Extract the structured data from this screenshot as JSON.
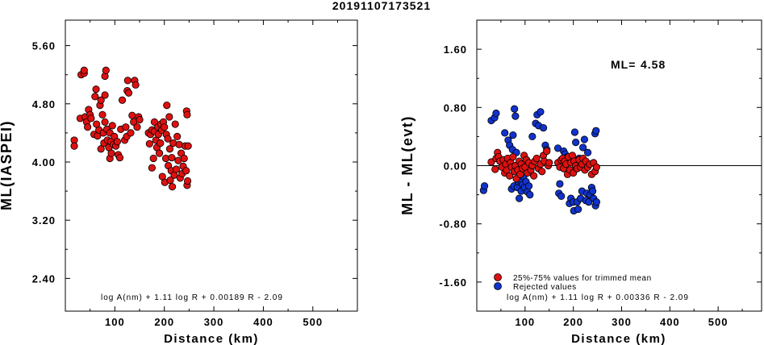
{
  "title": "20191107173521",
  "colors": {
    "red": "#dd1111",
    "blue": "#1133cc",
    "axis": "#000000"
  },
  "chart_data": [
    {
      "type": "scatter",
      "id": "left",
      "xlabel": "Distance (km)",
      "ylabel": "ML(IASPEI)",
      "xlim": [
        0,
        590
      ],
      "ylim": [
        1.95,
        5.95
      ],
      "xticks": [
        "100",
        "200",
        "300",
        "400",
        "500"
      ],
      "xtick_values": [
        100,
        200,
        300,
        400,
        500
      ],
      "yticks": [
        "5.60",
        "4.80",
        "4.00",
        "3.20",
        "2.40"
      ],
      "ytick_values": [
        5.6,
        4.8,
        4.0,
        3.2,
        2.4
      ],
      "annotation": "log A(nm) + 1.11 log R + 0.00189 R - 2.09",
      "series": [
        {
          "color": "red",
          "points": [
            [
              18,
              4.3
            ],
            [
              18,
              4.22
            ],
            [
              30,
              4.6
            ],
            [
              32,
              5.2
            ],
            [
              38,
              5.22
            ],
            [
              38,
              5.26
            ],
            [
              40,
              4.62
            ],
            [
              43,
              4.55
            ],
            [
              45,
              4.48
            ],
            [
              47,
              4.72
            ],
            [
              50,
              4.65
            ],
            [
              52,
              4.6
            ],
            [
              58,
              4.38
            ],
            [
              60,
              4.9
            ],
            [
              62,
              5.0
            ],
            [
              63,
              4.52
            ],
            [
              65,
              4.36
            ],
            [
              68,
              4.44
            ],
            [
              70,
              4.78
            ],
            [
              72,
              4.85
            ],
            [
              72,
              4.18
            ],
            [
              75,
              4.65
            ],
            [
              77,
              4.4
            ],
            [
              78,
              4.26
            ],
            [
              80,
              4.92
            ],
            [
              80,
              4.55
            ],
            [
              80,
              5.18
            ],
            [
              82,
              5.26
            ],
            [
              84,
              4.45
            ],
            [
              85,
              4.3
            ],
            [
              88,
              4.2
            ],
            [
              90,
              4.05
            ],
            [
              90,
              4.4
            ],
            [
              92,
              4.28
            ],
            [
              93,
              4.12
            ],
            [
              95,
              4.5
            ],
            [
              97,
              4.24
            ],
            [
              99,
              4.35
            ],
            [
              102,
              4.22
            ],
            [
              105,
              4.28
            ],
            [
              107,
              4.1
            ],
            [
              110,
              4.06
            ],
            [
              112,
              4.45
            ],
            [
              115,
              4.85
            ],
            [
              120,
              4.3
            ],
            [
              122,
              4.48
            ],
            [
              124,
              4.35
            ],
            [
              125,
              4.98
            ],
            [
              126,
              5.12
            ],
            [
              128,
              4.95
            ],
            [
              132,
              4.4
            ],
            [
              135,
              4.64
            ],
            [
              138,
              4.55
            ],
            [
              140,
              5.12
            ],
            [
              142,
              5.06
            ],
            [
              145,
              4.48
            ],
            [
              148,
              4.62
            ],
            [
              150,
              4.58
            ],
            [
              168,
              4.4
            ],
            [
              170,
              4.25
            ],
            [
              172,
              4.38
            ],
            [
              175,
              4.44
            ],
            [
              175,
              3.92
            ],
            [
              178,
              4.05
            ],
            [
              180,
              4.55
            ],
            [
              180,
              4.42
            ],
            [
              183,
              4.3
            ],
            [
              185,
              4.2
            ],
            [
              187,
              4.48
            ],
            [
              188,
              4.38
            ],
            [
              190,
              4.12
            ],
            [
              192,
              4.26
            ],
            [
              193,
              4.52
            ],
            [
              195,
              4.44
            ],
            [
              196,
              3.8
            ],
            [
              198,
              4.55
            ],
            [
              200,
              4.48
            ],
            [
              201,
              3.72
            ],
            [
              203,
              4.05
            ],
            [
              204,
              4.38
            ],
            [
              205,
              4.78
            ],
            [
              207,
              4.32
            ],
            [
              208,
              3.95
            ],
            [
              210,
              4.62
            ],
            [
              211,
              4.18
            ],
            [
              212,
              3.75
            ],
            [
              214,
              3.88
            ],
            [
              215,
              4.06
            ],
            [
              216,
              3.66
            ],
            [
              218,
              4.26
            ],
            [
              220,
              3.82
            ],
            [
              222,
              4.52
            ],
            [
              224,
              3.9
            ],
            [
              226,
              4.35
            ],
            [
              228,
              4.02
            ],
            [
              230,
              4.24
            ],
            [
              232,
              3.78
            ],
            [
              234,
              4.12
            ],
            [
              236,
              3.84
            ],
            [
              238,
              3.94
            ],
            [
              240,
              4.05
            ],
            [
              242,
              4.22
            ],
            [
              244,
              3.88
            ],
            [
              245,
              4.7
            ],
            [
              246,
              3.68
            ],
            [
              246,
              4.65
            ],
            [
              247,
              3.74
            ],
            [
              248,
              4.22
            ]
          ]
        }
      ]
    },
    {
      "type": "scatter",
      "id": "right",
      "xlabel": "Distance (km)",
      "ylabel": "ML - ML(evt)",
      "xlim": [
        0,
        590
      ],
      "ylim": [
        -2.0,
        2.0
      ],
      "xticks": [
        "100",
        "200",
        "300",
        "400",
        "500"
      ],
      "xtick_values": [
        100,
        200,
        300,
        400,
        500
      ],
      "yticks": [
        "1.60",
        "0.80",
        "0.00",
        "-0.80",
        "-1.60"
      ],
      "ytick_values": [
        1.6,
        0.8,
        0.0,
        -0.8,
        -1.6
      ],
      "reference_line_y": 0.0,
      "ml_label": "ML=",
      "ml_value": "4.58",
      "annotation": "log A(nm) + 1.11 log R + 0.00336 R - 2.09",
      "legend": [
        {
          "label": "25%-75% values for trimmed mean",
          "color": "red"
        },
        {
          "label": "Rejected values",
          "color": "blue"
        }
      ],
      "series": [
        {
          "color": "blue",
          "points": [
            [
              14,
              -0.34
            ],
            [
              16,
              -0.28
            ],
            [
              30,
              0.62
            ],
            [
              37,
              0.66
            ],
            [
              40,
              0.72
            ],
            [
              58,
              0.45
            ],
            [
              65,
              0.35
            ],
            [
              68,
              0.28
            ],
            [
              72,
              -0.32
            ],
            [
              74,
              0.22
            ],
            [
              75,
              0.42
            ],
            [
              77,
              -0.28
            ],
            [
              78,
              0.78
            ],
            [
              80,
              0.68
            ],
            [
              82,
              0.18
            ],
            [
              84,
              -0.3
            ],
            [
              86,
              -0.22
            ],
            [
              88,
              -0.45
            ],
            [
              90,
              -0.2
            ],
            [
              92,
              -0.35
            ],
            [
              95,
              -0.26
            ],
            [
              97,
              -0.15
            ],
            [
              99,
              -0.3
            ],
            [
              102,
              -0.22
            ],
            [
              105,
              -0.36
            ],
            [
              108,
              -0.28
            ],
            [
              110,
              -0.4
            ],
            [
              115,
              0.4
            ],
            [
              122,
              0.58
            ],
            [
              125,
              0.7
            ],
            [
              128,
              0.55
            ],
            [
              132,
              0.74
            ],
            [
              138,
              0.52
            ],
            [
              142,
              0.28
            ],
            [
              145,
              0.22
            ],
            [
              168,
              0.24
            ],
            [
              170,
              -0.38
            ],
            [
              172,
              -0.25
            ],
            [
              175,
              -0.42
            ],
            [
              180,
              0.2
            ],
            [
              183,
              0.16
            ],
            [
              188,
              0.12
            ],
            [
              192,
              -0.52
            ],
            [
              195,
              -0.45
            ],
            [
              198,
              0.1
            ],
            [
              200,
              -0.5
            ],
            [
              201,
              -0.62
            ],
            [
              203,
              0.46
            ],
            [
              205,
              0.32
            ],
            [
              208,
              -0.5
            ],
            [
              210,
              -0.6
            ],
            [
              212,
              0.1
            ],
            [
              215,
              -0.45
            ],
            [
              218,
              -0.35
            ],
            [
              220,
              0.25
            ],
            [
              223,
              0.36
            ],
            [
              226,
              -0.48
            ],
            [
              228,
              -0.38
            ],
            [
              230,
              0.18
            ],
            [
              232,
              -0.5
            ],
            [
              235,
              -0.4
            ],
            [
              238,
              -0.3
            ],
            [
              240,
              -0.35
            ],
            [
              242,
              -0.45
            ],
            [
              245,
              0.44
            ],
            [
              246,
              -0.55
            ],
            [
              247,
              0.48
            ],
            [
              248,
              -0.5
            ]
          ]
        },
        {
          "color": "red",
          "points": [
            [
              30,
              0.05
            ],
            [
              38,
              -0.05
            ],
            [
              40,
              0.1
            ],
            [
              43,
              0.18
            ],
            [
              45,
              0.12
            ],
            [
              48,
              0.06
            ],
            [
              52,
              -0.02
            ],
            [
              55,
              0.08
            ],
            [
              58,
              -0.1
            ],
            [
              60,
              0.02
            ],
            [
              62,
              -0.06
            ],
            [
              64,
              0.1
            ],
            [
              68,
              -0.14
            ],
            [
              70,
              0.04
            ],
            [
              72,
              -0.02
            ],
            [
              75,
              0.12
            ],
            [
              78,
              -0.08
            ],
            [
              80,
              0.0
            ],
            [
              82,
              -0.18
            ],
            [
              85,
              -0.06
            ],
            [
              88,
              0.06
            ],
            [
              90,
              -0.12
            ],
            [
              92,
              0.02
            ],
            [
              95,
              -0.04
            ],
            [
              98,
              0.14
            ],
            [
              100,
              -0.02
            ],
            [
              103,
              0.08
            ],
            [
              105,
              -0.1
            ],
            [
              108,
              0.04
            ],
            [
              112,
              -0.06
            ],
            [
              115,
              0.0
            ],
            [
              118,
              -0.14
            ],
            [
              120,
              0.06
            ],
            [
              124,
              0.1
            ],
            [
              128,
              -0.04
            ],
            [
              132,
              0.02
            ],
            [
              135,
              -0.08
            ],
            [
              138,
              0.14
            ],
            [
              140,
              0.06
            ],
            [
              145,
              0.2
            ],
            [
              148,
              0.0
            ],
            [
              150,
              0.04
            ],
            [
              168,
              0.04
            ],
            [
              172,
              -0.02
            ],
            [
              175,
              0.08
            ],
            [
              178,
              0.1
            ],
            [
              180,
              -0.04
            ],
            [
              182,
              0.06
            ],
            [
              185,
              0.02
            ],
            [
              188,
              -0.12
            ],
            [
              190,
              0.12
            ],
            [
              193,
              -0.06
            ],
            [
              195,
              0.04
            ],
            [
              198,
              0.14
            ],
            [
              200,
              -0.1
            ],
            [
              202,
              0.06
            ],
            [
              205,
              0.0
            ],
            [
              208,
              -0.04
            ],
            [
              212,
              0.08
            ],
            [
              215,
              -0.02
            ],
            [
              218,
              0.02
            ],
            [
              220,
              0.1
            ],
            [
              224,
              -0.06
            ],
            [
              226,
              0.06
            ],
            [
              230,
              -0.02
            ],
            [
              234,
              0.02
            ],
            [
              238,
              -0.12
            ],
            [
              242,
              0.04
            ],
            [
              245,
              -0.08
            ],
            [
              248,
              -0.02
            ]
          ]
        }
      ]
    }
  ]
}
